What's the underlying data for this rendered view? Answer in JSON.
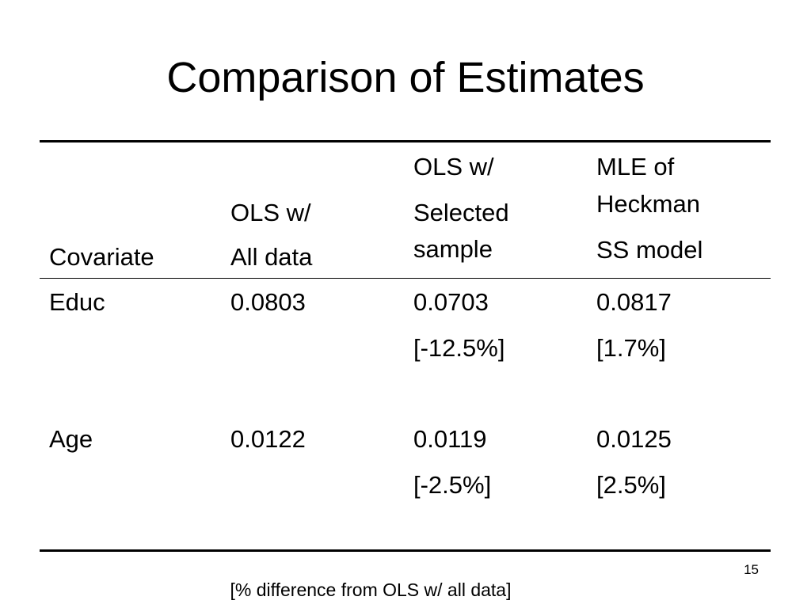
{
  "slide": {
    "title": "Comparison of Estimates",
    "number": "15",
    "footnote": "[% difference from OLS w/ all data]"
  },
  "table": {
    "headers": {
      "covariate": "Covariate",
      "ols_all_line1": "OLS w/",
      "ols_all_line2": "All data",
      "ols_sel_line1": "OLS w/",
      "ols_sel_line2": "Selected",
      "ols_sel_line3": "sample",
      "mle_line1": "MLE of",
      "mle_line2": "Heckman",
      "mle_line3": "SS model"
    },
    "rows": [
      {
        "covariate": "Educ",
        "ols_all": "0.0803",
        "ols_sel": "0.0703",
        "ols_sel_diff": "[-12.5%]",
        "mle": "0.0817",
        "mle_diff": "[1.7%]"
      },
      {
        "covariate": "Age",
        "ols_all": "0.0122",
        "ols_sel": "0.0119",
        "ols_sel_diff": "[-2.5%]",
        "mle": "0.0125",
        "mle_diff": "[2.5%]"
      }
    ]
  }
}
